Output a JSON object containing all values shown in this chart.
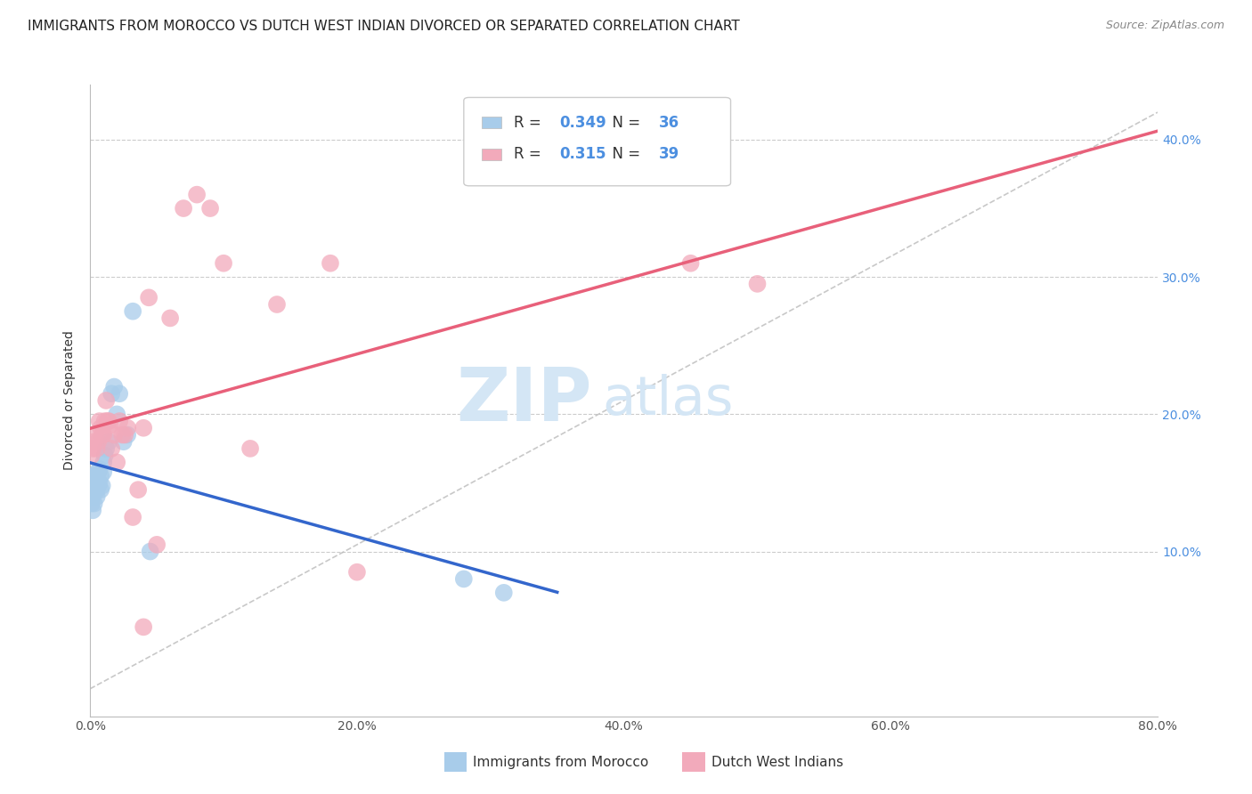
{
  "title": "IMMIGRANTS FROM MOROCCO VS DUTCH WEST INDIAN DIVORCED OR SEPARATED CORRELATION CHART",
  "source": "Source: ZipAtlas.com",
  "ylabel": "Divorced or Separated",
  "xlabel_ticks": [
    "0.0%",
    "20.0%",
    "40.0%",
    "60.0%",
    "80.0%"
  ],
  "xlabel_vals": [
    0.0,
    0.2,
    0.4,
    0.6,
    0.8
  ],
  "ylabel_ticks": [
    "10.0%",
    "20.0%",
    "30.0%",
    "40.0%"
  ],
  "ylabel_vals": [
    0.1,
    0.2,
    0.3,
    0.4
  ],
  "xlim": [
    0.0,
    0.8
  ],
  "ylim": [
    -0.02,
    0.44
  ],
  "blue_R": 0.349,
  "blue_N": 36,
  "pink_R": 0.315,
  "pink_N": 39,
  "blue_label": "Immigrants from Morocco",
  "pink_label": "Dutch West Indians",
  "blue_color": "#A8CCEA",
  "pink_color": "#F2AABB",
  "blue_line_color": "#3366CC",
  "pink_line_color": "#E8607A",
  "dashed_line_color": "#BBBBBB",
  "watermark_zip": "ZIP",
  "watermark_atlas": "atlas",
  "watermark_color": "#D4E6F5",
  "background_color": "#FFFFFF",
  "blue_scatter_x": [
    0.001,
    0.001,
    0.001,
    0.001,
    0.002,
    0.002,
    0.002,
    0.003,
    0.003,
    0.004,
    0.004,
    0.005,
    0.005,
    0.005,
    0.006,
    0.006,
    0.007,
    0.007,
    0.008,
    0.008,
    0.009,
    0.01,
    0.01,
    0.011,
    0.012,
    0.014,
    0.016,
    0.018,
    0.02,
    0.022,
    0.025,
    0.028,
    0.032,
    0.28,
    0.045,
    0.31
  ],
  "blue_scatter_y": [
    0.135,
    0.14,
    0.145,
    0.15,
    0.13,
    0.14,
    0.155,
    0.135,
    0.15,
    0.148,
    0.155,
    0.14,
    0.145,
    0.155,
    0.148,
    0.158,
    0.15,
    0.16,
    0.145,
    0.155,
    0.148,
    0.158,
    0.165,
    0.17,
    0.175,
    0.18,
    0.215,
    0.22,
    0.2,
    0.215,
    0.18,
    0.185,
    0.275,
    0.08,
    0.1,
    0.07
  ],
  "pink_scatter_x": [
    0.001,
    0.002,
    0.003,
    0.004,
    0.005,
    0.006,
    0.007,
    0.008,
    0.009,
    0.01,
    0.011,
    0.012,
    0.013,
    0.014,
    0.015,
    0.016,
    0.018,
    0.02,
    0.022,
    0.024,
    0.026,
    0.028,
    0.032,
    0.036,
    0.04,
    0.044,
    0.05,
    0.06,
    0.07,
    0.08,
    0.09,
    0.1,
    0.12,
    0.14,
    0.18,
    0.2,
    0.45,
    0.5,
    0.04
  ],
  "pink_scatter_y": [
    0.17,
    0.175,
    0.18,
    0.185,
    0.175,
    0.18,
    0.195,
    0.19,
    0.185,
    0.185,
    0.195,
    0.21,
    0.195,
    0.195,
    0.192,
    0.175,
    0.185,
    0.165,
    0.195,
    0.185,
    0.185,
    0.19,
    0.125,
    0.145,
    0.19,
    0.285,
    0.105,
    0.27,
    0.35,
    0.36,
    0.35,
    0.31,
    0.175,
    0.28,
    0.31,
    0.085,
    0.31,
    0.295,
    0.045
  ],
  "title_fontsize": 11,
  "axis_label_fontsize": 10,
  "tick_fontsize": 10,
  "legend_fontsize": 12
}
